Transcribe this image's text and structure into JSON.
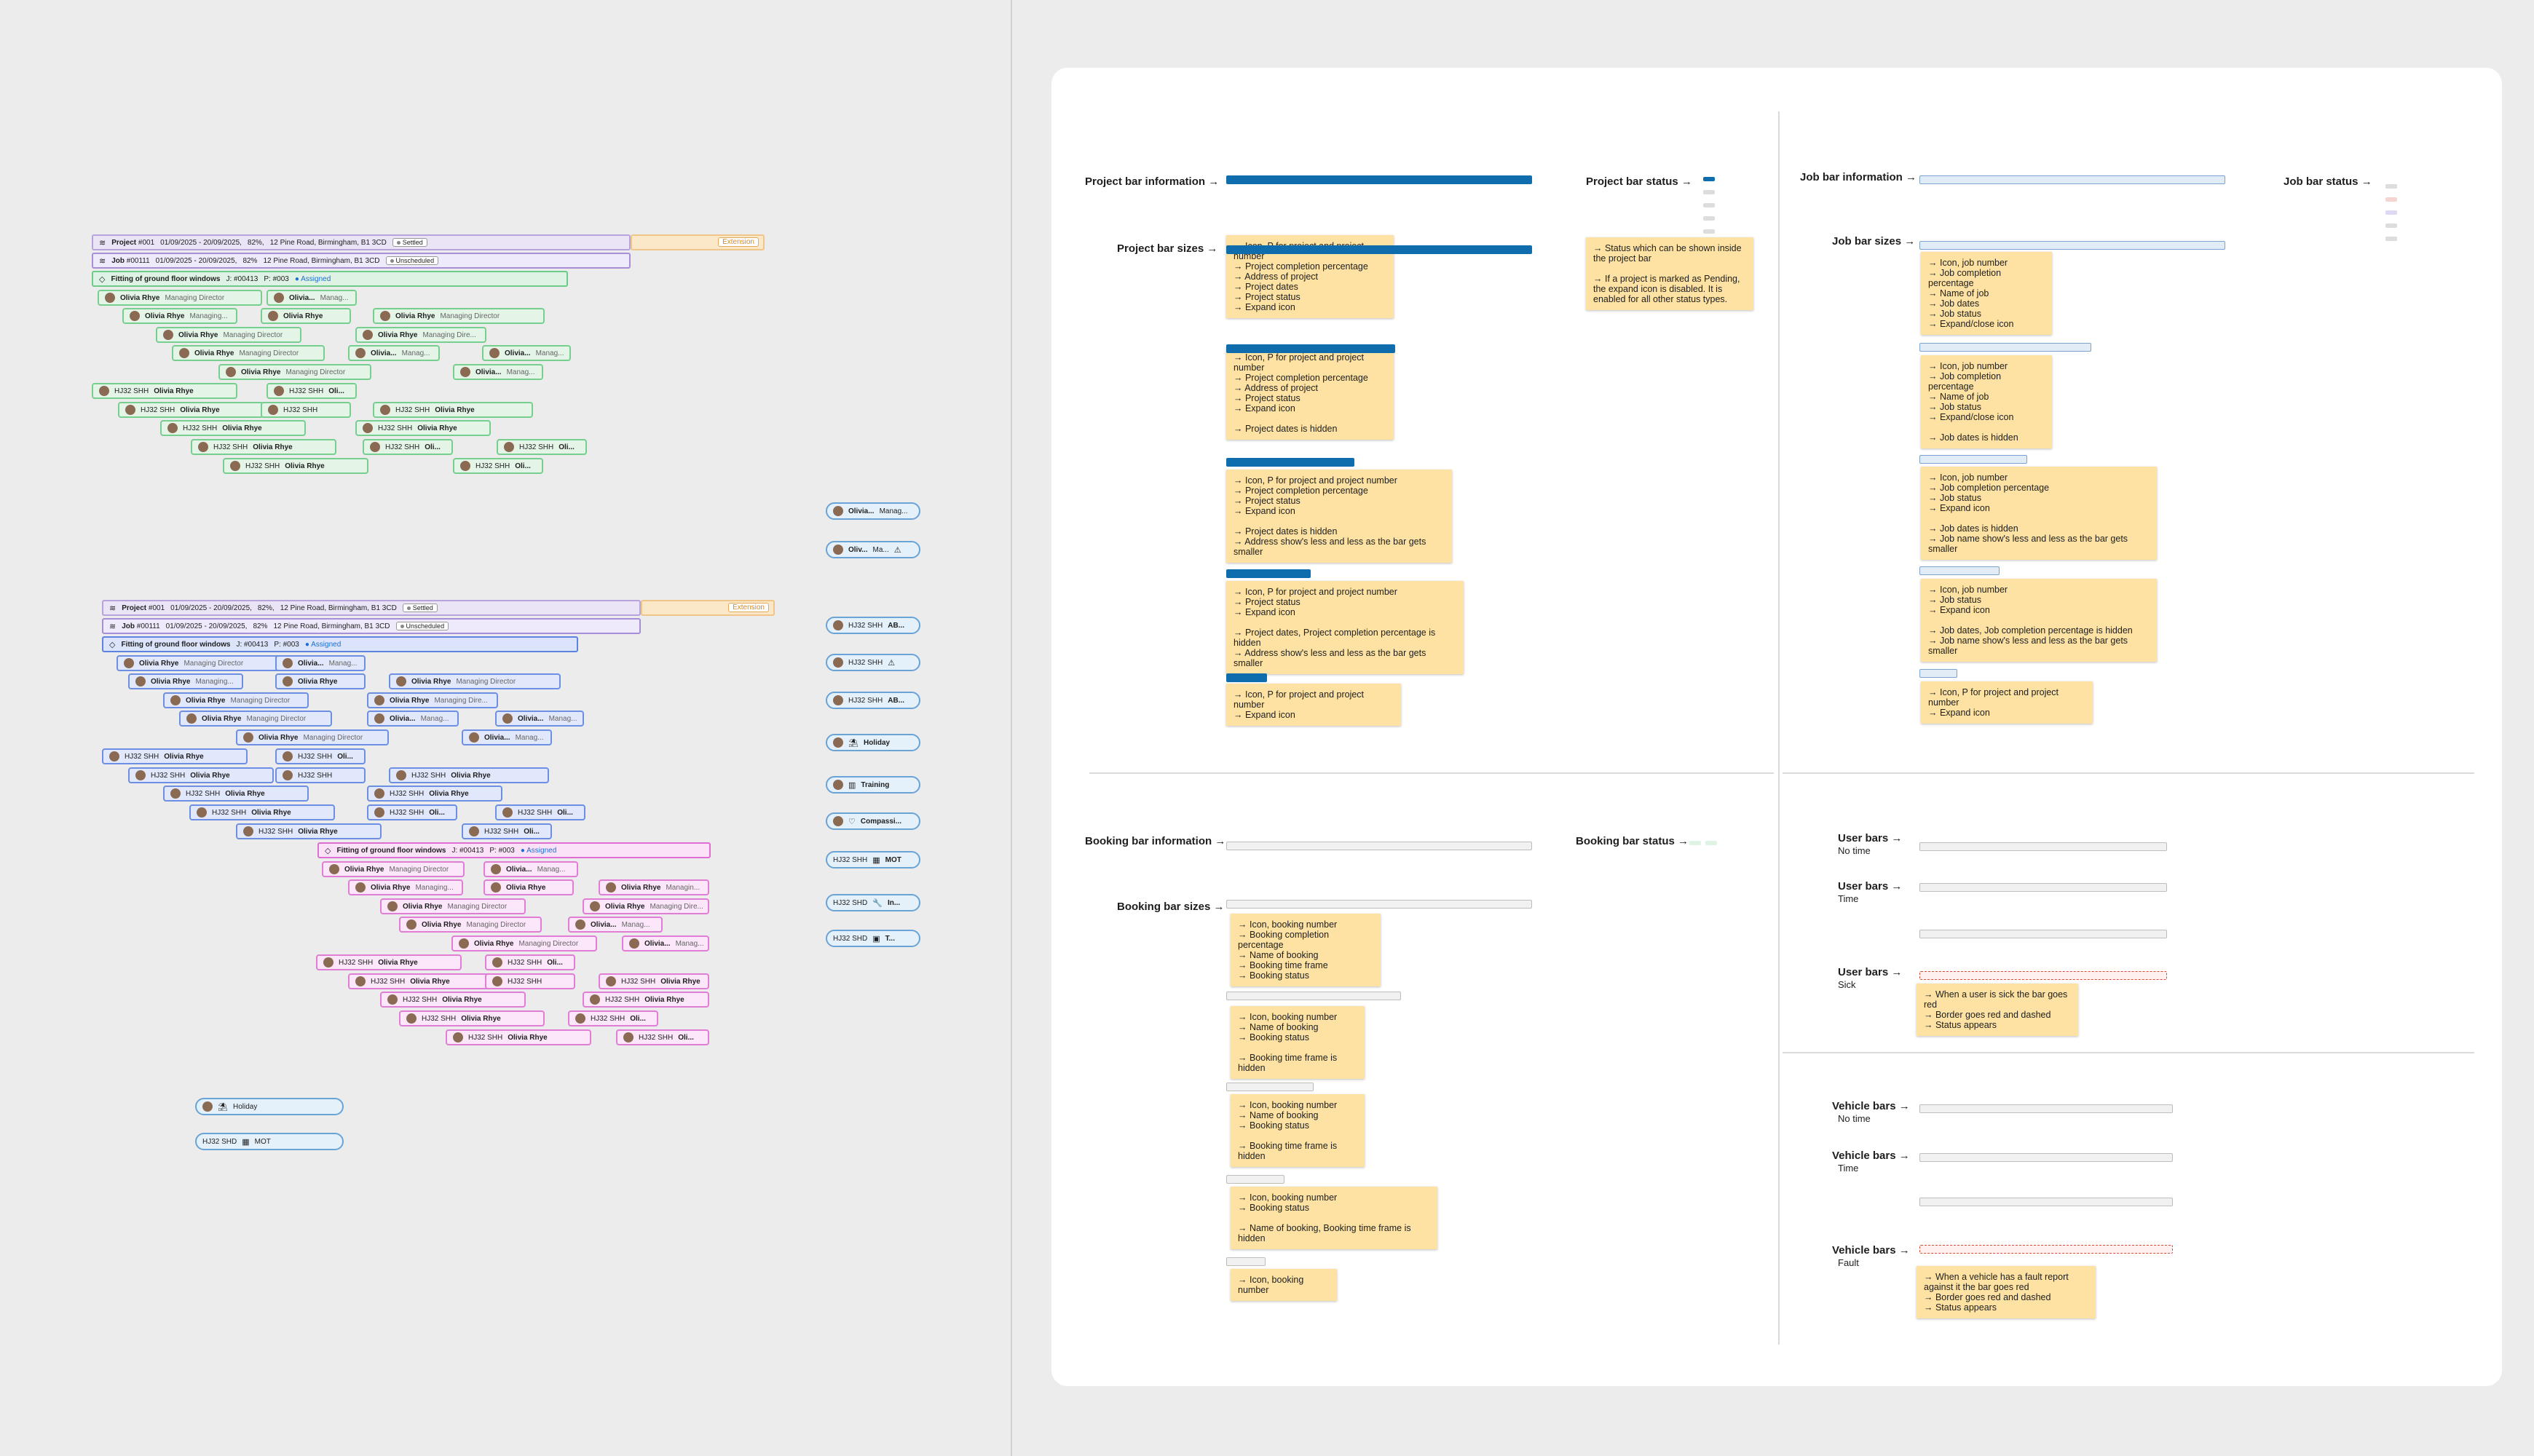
{
  "left": {
    "project_bar": {
      "prefix": "Project",
      "number": "#001",
      "dates": "01/09/2025 - 20/09/2025,",
      "pct": "82%,",
      "address": "12 Pine Road, Birmingham, B1 3CD",
      "status": "Settled",
      "extension": "Extension"
    },
    "job_bar": {
      "prefix": "Job",
      "number": "#00111",
      "dates": "01/09/2025 - 20/09/2025,",
      "pct": "82%",
      "address": "12 Pine Road, Birmingham, B1 3CD",
      "status": "Unscheduled"
    },
    "booking_bar": {
      "name": "Fitting of ground floor windows",
      "job": "J: #00413",
      "project": "P: #003",
      "status": "Assigned"
    },
    "person": {
      "full": "Olivia Rhye",
      "role": "Managing Director",
      "short": "Olivia...",
      "role_short": "Manag...",
      "role_short2": "Managing...",
      "role_short3": "Managing Dire...",
      "role_short4": "Managin...",
      "short2": "Oli..."
    },
    "vehicle": {
      "reg": "HJ32 SHH",
      "driver": "Olivia Rhye",
      "ab": "AB...",
      "reg2": "HJ32 SHD",
      "mot": "MOT"
    },
    "legend": {
      "holiday": "Holiday",
      "training": "Training",
      "compassionate": "Compassi...",
      "in": "In...",
      "t": "T...",
      "oliv": "Oliv...",
      "me": "Ma..."
    }
  },
  "panel": {
    "sections": {
      "project_info": "Project bar information",
      "project_sizes": "Project bar sizes",
      "project_status": "Project bar status",
      "job_info": "Job bar information",
      "job_sizes": "Job bar sizes",
      "job_status": "Job bar status",
      "booking_info": "Booking bar information",
      "booking_sizes": "Booking bar sizes",
      "booking_status": "Booking bar status",
      "user_none": "User bars",
      "user_none_sub": "No time",
      "user_time": "User bars",
      "user_time_sub": "Time",
      "user_sick": "User bars",
      "user_sick_sub": "Sick",
      "vehicle_none": "Vehicle bars",
      "vehicle_none_sub": "No time",
      "vehicle_time": "Vehicle bars",
      "vehicle_time_sub": "Time",
      "vehicle_fault": "Vehicle bars",
      "vehicle_fault_sub": "Fault"
    },
    "project_notes": [
      [
        "→ Icon, P for project and project number",
        "→ Project completion percentage",
        "→ Address of project",
        "→ Project dates",
        "→ Project status",
        "→ Expand icon"
      ],
      [
        "→ Icon, P for project and project number",
        "→ Project completion percentage",
        "→ Address of project",
        "→ Project status",
        "→ Expand icon",
        "",
        "→ Project dates is hidden"
      ],
      [
        "→ Icon, P for project and project number",
        "→ Project completion percentage",
        "→ Project status",
        "→ Expand icon",
        "",
        "→ Project dates is hidden",
        "→ Address show's less and less as the bar gets smaller"
      ],
      [
        "→ Icon, P for project and project number",
        "→ Project status",
        "→ Expand icon",
        "",
        "→ Project dates, Project completion percentage is hidden",
        "→ Address show's less and less as the bar gets smaller"
      ],
      [
        "→ Icon, P for project and project number",
        "→ Expand icon"
      ]
    ],
    "project_status_note": [
      "→ Status which can be shown inside the project bar",
      "",
      "→ If a project is marked as Pending, the expand icon is disabled. It is enabled for all other status types."
    ],
    "job_notes": [
      [
        "→ Icon, job number",
        "→ Job completion percentage",
        "→ Name of job",
        "→ Job dates",
        "→ Job status",
        "→ Expand/close icon"
      ],
      [
        "→ Icon, job number",
        "→ Job completion percentage",
        "→ Name of job",
        "→ Job status",
        "→ Expand/close icon",
        "",
        "→ Job dates is hidden"
      ],
      [
        "→ Icon, job number",
        "→ Job completion percentage",
        "→ Job status",
        "→ Expand icon",
        "",
        "→ Job dates is hidden",
        "→ Job name show's less and less as the bar gets smaller"
      ],
      [
        "→ Icon, job number",
        "→ Job status",
        "→ Expand icon",
        "",
        "→ Job dates, Job completion percentage is hidden",
        "→ Job name show's less and less as the bar gets smaller"
      ],
      [
        "→ Icon, P for project and project number",
        "→ Expand icon"
      ]
    ],
    "booking_notes": [
      [
        "→ Icon, booking number",
        "→ Booking completion percentage",
        "→ Name of booking",
        "→ Booking time frame",
        "→ Booking status"
      ],
      [
        "→ Icon, booking number",
        "→ Name of booking",
        "→ Booking status",
        "",
        "→ Booking time frame is hidden"
      ],
      [
        "→ Icon, booking number",
        "→ Name of booking",
        "→ Booking status",
        "",
        "→ Booking time frame is hidden"
      ],
      [
        "→ Icon, booking number",
        "→ Booking status",
        "",
        "→ Name of booking, Booking time frame is hidden"
      ],
      [
        "→ Icon, booking number"
      ]
    ],
    "user_sick_note": [
      "→ When a user is sick the bar goes red",
      "→ Border goes red and dashed",
      "→ Status appears"
    ],
    "vehicle_fault_note": [
      "→ When a vehicle has a fault report against it the bar goes red",
      "→ Border goes red and dashed",
      "→ Status appears"
    ]
  }
}
